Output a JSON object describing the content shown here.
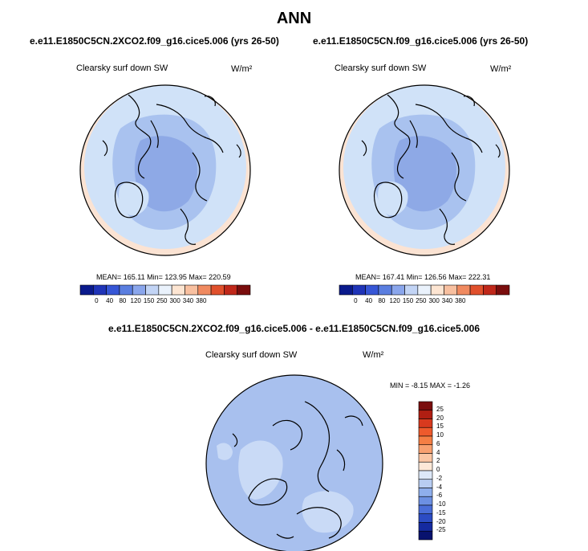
{
  "season": "ANN",
  "panel_left": {
    "case_title": "e.e11.E1850C5CN.2XCO2.f09_g16.cice5.006 (yrs 26-50)",
    "variable": "Clearsky surf down SW",
    "units": "W/m²",
    "stats": "MEAN= 165.11   Min= 123.95   Max= 220.59"
  },
  "panel_right": {
    "case_title": "e.e11.E1850C5CN.f09_g16.cice5.006 (yrs 26-50)",
    "variable": "Clearsky surf down SW",
    "units": "W/m²",
    "stats": "MEAN= 167.41   Min= 126.56   Max= 222.31"
  },
  "panel_diff": {
    "case_title": "e.e11.E1850C5CN.2XCO2.f09_g16.cice5.006 - e.e11.E1850C5CN.f09_g16.cice5.006",
    "variable": "Clearsky surf down SW",
    "units": "W/m²",
    "stats": "MIN =  -8.15 MAX =  -1.26"
  },
  "colorbar_abs": {
    "labels": [
      "0",
      "40",
      "80",
      "120",
      "150",
      "250",
      "300",
      "340",
      "380"
    ],
    "colors": [
      "#0a1a8c",
      "#1f34b8",
      "#3656d6",
      "#5a7ee0",
      "#8aa6ec",
      "#c2d4f5",
      "#eaf2fc",
      "#fde5d2",
      "#f8c0a0",
      "#f08a60",
      "#e0502c",
      "#c0281a",
      "#7a0d0d"
    ]
  },
  "colorbar_diff": {
    "labels": [
      "25",
      "20",
      "15",
      "10",
      "6",
      "4",
      "2",
      "0",
      "-2",
      "-4",
      "-6",
      "-10",
      "-15",
      "-20",
      "-25"
    ],
    "colors": [
      "#7a0d0d",
      "#b01e12",
      "#d83a1e",
      "#ee5a2c",
      "#f57e44",
      "#f8a070",
      "#fbc6a4",
      "#fde8d8",
      "#dde8f8",
      "#b8cdf2",
      "#8eaeec",
      "#6c90e2",
      "#4a6ed8",
      "#2c4cc4",
      "#152aa0",
      "#08126e"
    ]
  },
  "map_colors": {
    "ocean_edge": "#fbe3d3",
    "light": "#d0e2f8",
    "mid": "#a9c2ef",
    "deep": "#8ea9e6",
    "diff_base": "#a8c0ee",
    "diff_light": "#c9daf6"
  }
}
